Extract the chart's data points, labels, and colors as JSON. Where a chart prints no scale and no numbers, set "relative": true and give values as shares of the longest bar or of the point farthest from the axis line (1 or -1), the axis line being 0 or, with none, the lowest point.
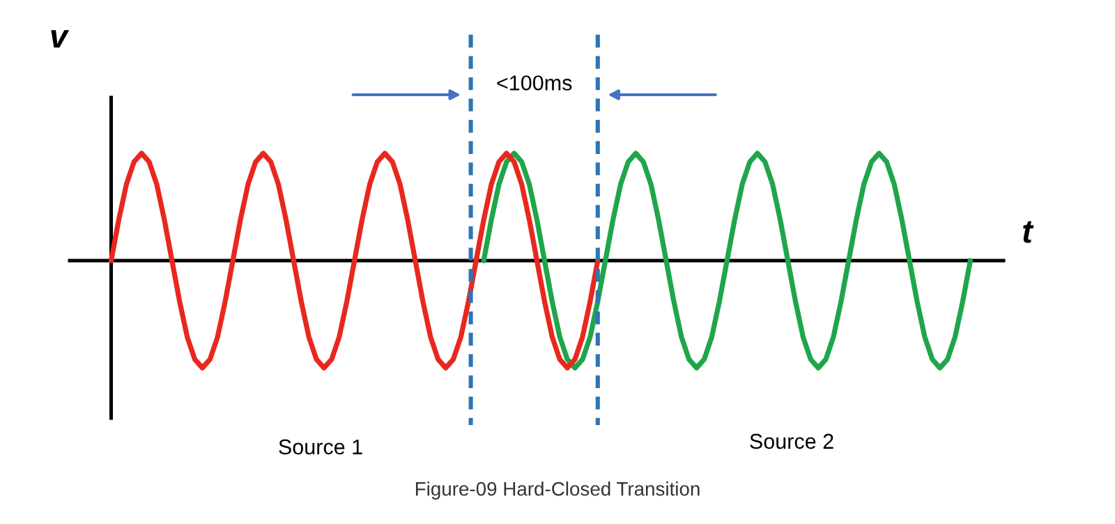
{
  "chart_data": {
    "type": "line",
    "relative": true,
    "xlabel": "t",
    "ylabel": "v",
    "categories": [
      null,
      null,
      null,
      null,
      null,
      null,
      null,
      null,
      null,
      null,
      null,
      null,
      null,
      null,
      null,
      null,
      null,
      null,
      null,
      null,
      null,
      null,
      null,
      null,
      null,
      null,
      null,
      null,
      null,
      null,
      null,
      null,
      null,
      null,
      null,
      null,
      null,
      null,
      null,
      null,
      null,
      null,
      null,
      null,
      null,
      null,
      null,
      null,
      null,
      null,
      null,
      null,
      null,
      null,
      null,
      null,
      null,
      null,
      null,
      null,
      null,
      null,
      null,
      null,
      null,
      null,
      null,
      null,
      null,
      null,
      null,
      null,
      null,
      null,
      null,
      null,
      null,
      null,
      null,
      null,
      null,
      null,
      null,
      null,
      null,
      null,
      null,
      null,
      null,
      null,
      null,
      null,
      null,
      null,
      null,
      null,
      null,
      null,
      null,
      null,
      null,
      null,
      null,
      null,
      null,
      null,
      null,
      null,
      null,
      null,
      null,
      null,
      null,
      null
    ],
    "series": [
      {
        "color": "#e8281e",
        "values": [
          0,
          0.38,
          0.71,
          0.92,
          1,
          0.92,
          0.71,
          0.38,
          0,
          -0.38,
          -0.71,
          -0.92,
          -1,
          -0.92,
          -0.71,
          -0.38,
          0,
          0.38,
          0.71,
          0.92,
          1,
          0.92,
          0.71,
          0.38,
          0,
          -0.38,
          -0.71,
          -0.92,
          -1,
          -0.92,
          -0.71,
          -0.38,
          0,
          0.38,
          0.71,
          0.92,
          1,
          0.92,
          0.71,
          0.38,
          0,
          -0.38,
          -0.71,
          -0.92,
          -1,
          -0.92,
          -0.71,
          -0.38,
          0,
          0.38,
          0.71,
          0.92,
          1,
          0.92,
          0.71,
          0.38,
          0,
          -0.38,
          -0.71,
          -0.92,
          -1,
          -0.92,
          -0.71,
          -0.38,
          0,
          null,
          null,
          null,
          null,
          null,
          null,
          null,
          null,
          null,
          null,
          null,
          null,
          null,
          null,
          null,
          null,
          null,
          null,
          null,
          null,
          null,
          null,
          null,
          null,
          null,
          null,
          null,
          null,
          null,
          null,
          null,
          null,
          null,
          null,
          null,
          null,
          null,
          null,
          null,
          null,
          null,
          null,
          null,
          null,
          null,
          null,
          null,
          null,
          null
        ]
      },
      {
        "color": "#1fa64a",
        "values": [
          null,
          null,
          null,
          null,
          null,
          null,
          null,
          null,
          null,
          null,
          null,
          null,
          null,
          null,
          null,
          null,
          null,
          null,
          null,
          null,
          null,
          null,
          null,
          null,
          null,
          null,
          null,
          null,
          null,
          null,
          null,
          null,
          null,
          null,
          null,
          null,
          null,
          null,
          null,
          null,
          null,
          null,
          null,
          null,
          null,
          null,
          null,
          null,
          null,
          0,
          0.38,
          0.71,
          0.92,
          1,
          0.92,
          0.71,
          0.38,
          0,
          -0.38,
          -0.71,
          -0.92,
          -1,
          -0.92,
          -0.71,
          -0.38,
          0,
          0.38,
          0.71,
          0.92,
          1,
          0.92,
          0.71,
          0.38,
          0,
          -0.38,
          -0.71,
          -0.92,
          -1,
          -0.92,
          -0.71,
          -0.38,
          0,
          0.38,
          0.71,
          0.92,
          1,
          0.92,
          0.71,
          0.38,
          0,
          -0.38,
          -0.71,
          -0.92,
          -1,
          -0.92,
          -0.71,
          -0.38,
          0,
          0.38,
          0.71,
          0.92,
          1,
          0.92,
          0.71,
          0.38,
          0,
          -0.38,
          -0.71,
          -0.92,
          -1,
          -0.92,
          -0.71,
          -0.38,
          0
        ]
      }
    ],
    "annotations": [
      "<100ms",
      "Figure-09 Hard-Closed Transition",
      "Source 1",
      "Source 2"
    ]
  }
}
